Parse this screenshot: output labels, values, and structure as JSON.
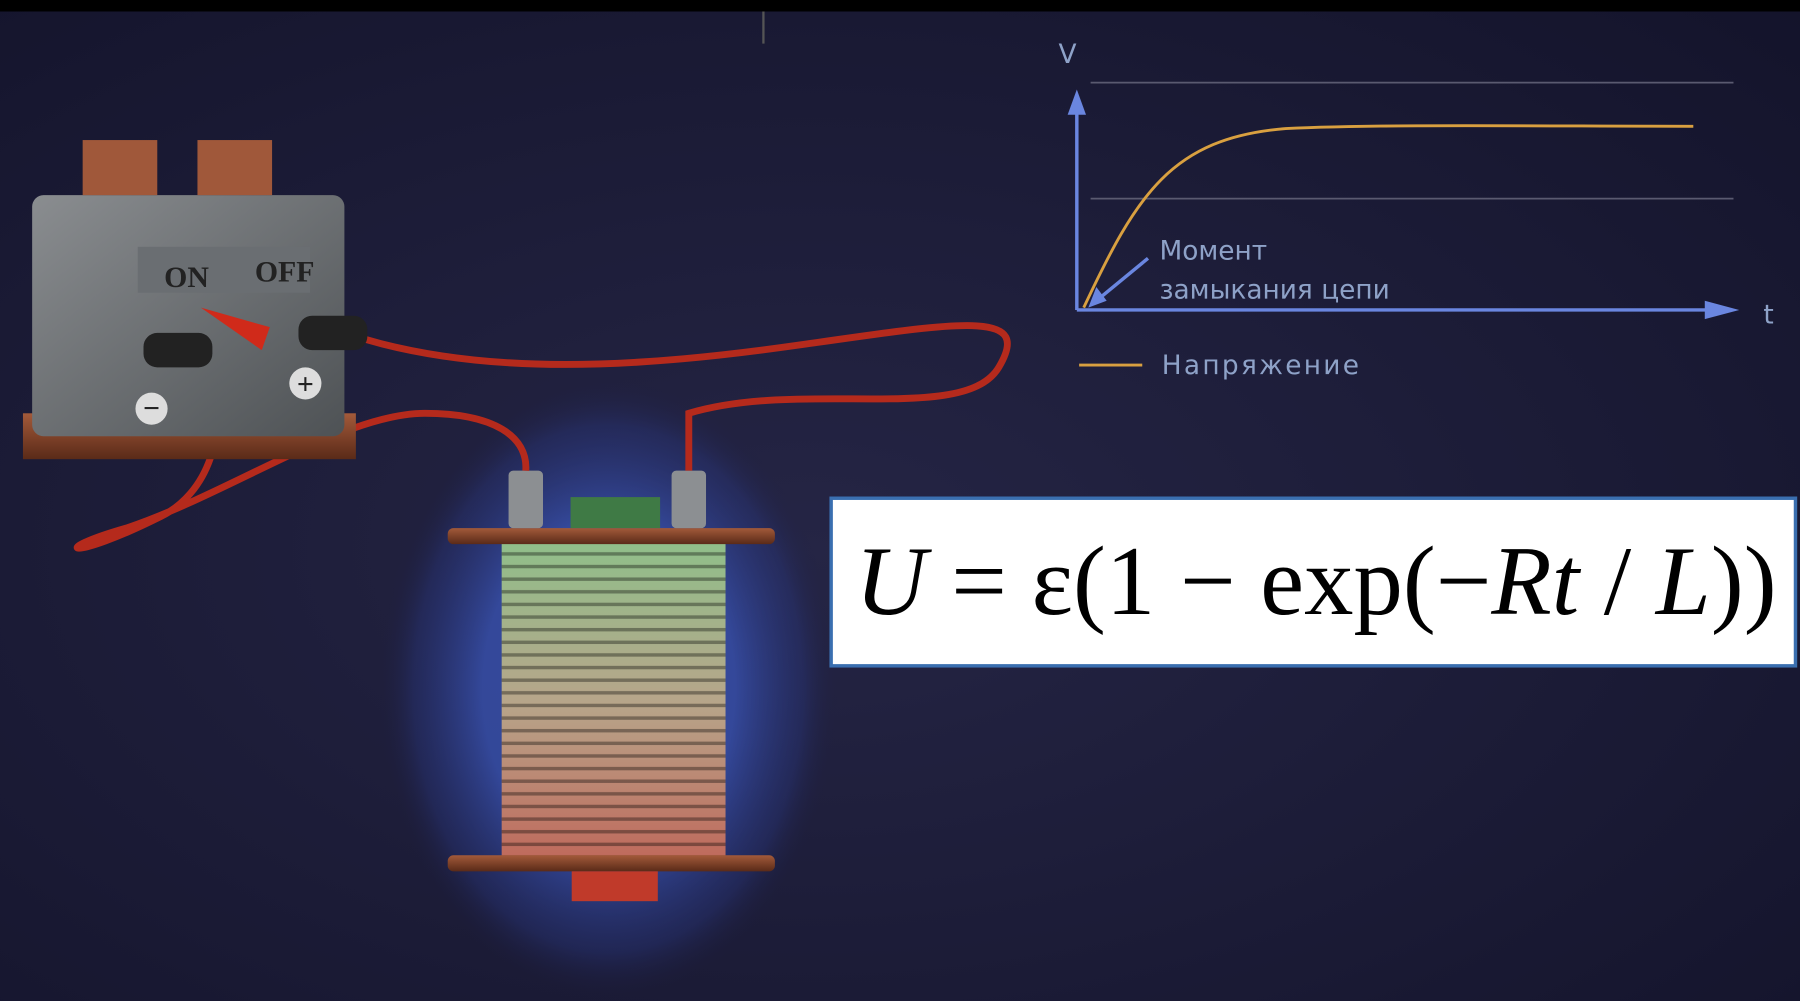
{
  "battery": {
    "switch_on": "ON",
    "switch_off": "OFF",
    "minus": "−",
    "plus": "+"
  },
  "graph": {
    "y_axis": "V",
    "x_axis": "t",
    "annotation": [
      "Момент",
      "замыкания цепи"
    ],
    "legend": "Напряжение"
  },
  "formula": {
    "parts": [
      "U",
      " = ε(1 − exp(−",
      "Rt",
      " / ",
      "L",
      "))"
    ]
  }
}
